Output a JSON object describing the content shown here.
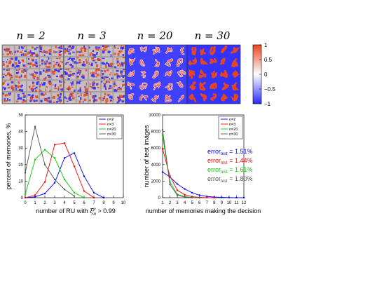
{
  "top_panel": {
    "panel_labels": [
      "n = 2",
      "n = 3",
      "n = 20",
      "n = 30"
    ],
    "colorbar": {
      "ticks": [
        "1",
        "0.5",
        "0",
        "−0.5",
        "−1"
      ],
      "range": [
        -1,
        1
      ],
      "colors": {
        "high": "#e8461e",
        "mid": "#ffffff",
        "low": "#2a2aff"
      }
    }
  },
  "chart_data": [
    {
      "type": "line",
      "xlabel": "number of RU with  ξμα > 0.99",
      "xlabel_parts": {
        "prefix": "number of RU with ",
        "xi": "ξ",
        "sup": "μ",
        "sub": "α",
        "suffix": " > 0.99"
      },
      "ylabel": "percent of memories, %",
      "xlim": [
        0,
        10
      ],
      "ylim": [
        0,
        50
      ],
      "xticks": [
        0,
        1,
        2,
        3,
        4,
        5,
        6,
        7,
        8,
        9,
        10
      ],
      "yticks": [
        0,
        10,
        20,
        30,
        40,
        50
      ],
      "grid": false,
      "legend_placement": "top-right",
      "series": [
        {
          "name": "n=2",
          "color": "#0000ff",
          "x": [
            0,
            1,
            2,
            3,
            4,
            5,
            6,
            7,
            8
          ],
          "y": [
            0,
            0.5,
            2.5,
            9,
            24,
            27,
            13,
            3,
            0
          ]
        },
        {
          "name": "n=3",
          "color": "#ff0000",
          "x": [
            0,
            1,
            2,
            3,
            4,
            5,
            6,
            7
          ],
          "y": [
            0,
            1.5,
            9.5,
            32,
            33,
            19,
            4,
            0
          ]
        },
        {
          "name": "n=20",
          "color": "#00cc00",
          "x": [
            0,
            1,
            2,
            3,
            4,
            5,
            6
          ],
          "y": [
            2,
            23,
            29,
            24,
            11,
            3,
            0
          ]
        },
        {
          "name": "n=30",
          "color": "#555555",
          "x": [
            0,
            1,
            2,
            3,
            4,
            5
          ],
          "y": [
            15,
            43,
            20,
            11,
            5,
            1
          ]
        }
      ]
    },
    {
      "type": "line",
      "xlabel": "number of memories making the decision",
      "ylabel": "number of test images",
      "xlim": [
        1,
        12
      ],
      "ylim": [
        0,
        10000
      ],
      "xticks": [
        1,
        2,
        3,
        4,
        5,
        6,
        7,
        8,
        9,
        10,
        11,
        12
      ],
      "yticks": [
        0,
        2000,
        4000,
        6000,
        8000,
        10000
      ],
      "grid": false,
      "legend_placement": "top-right",
      "series": [
        {
          "name": "n=2",
          "color": "#0000ff",
          "x": [
            1,
            2,
            3,
            4,
            5,
            6,
            7,
            8,
            9,
            10,
            11,
            12
          ],
          "y": [
            3100,
            2500,
            1650,
            1050,
            600,
            300,
            150,
            80,
            40,
            15,
            5,
            0
          ]
        },
        {
          "name": "n=3",
          "color": "#ff0000",
          "x": [
            1,
            2,
            3,
            4,
            5,
            6,
            7,
            8
          ],
          "y": [
            5900,
            2600,
            900,
            350,
            120,
            40,
            10,
            0
          ]
        },
        {
          "name": "n=20",
          "color": "#00cc00",
          "x": [
            1,
            2,
            3,
            4,
            5,
            6
          ],
          "y": [
            7500,
            1900,
            400,
            120,
            30,
            0
          ]
        },
        {
          "name": "n=30",
          "color": "#555555",
          "x": [
            1,
            2,
            3,
            4,
            5,
            6
          ],
          "y": [
            8200,
            1600,
            300,
            80,
            20,
            0
          ]
        }
      ],
      "annotations": [
        {
          "base": "error",
          "sub": "test",
          "value": " = 1.51%",
          "color": "#0000ff"
        },
        {
          "base": "error",
          "sub": "test",
          "value": " = 1.44%",
          "color": "#ff0000"
        },
        {
          "base": "error",
          "sub": "test",
          "value": " = 1.61%",
          "color": "#00cc00"
        },
        {
          "base": "error",
          "sub": "test",
          "value": " = 1.80%",
          "color": "#555555"
        }
      ]
    }
  ]
}
